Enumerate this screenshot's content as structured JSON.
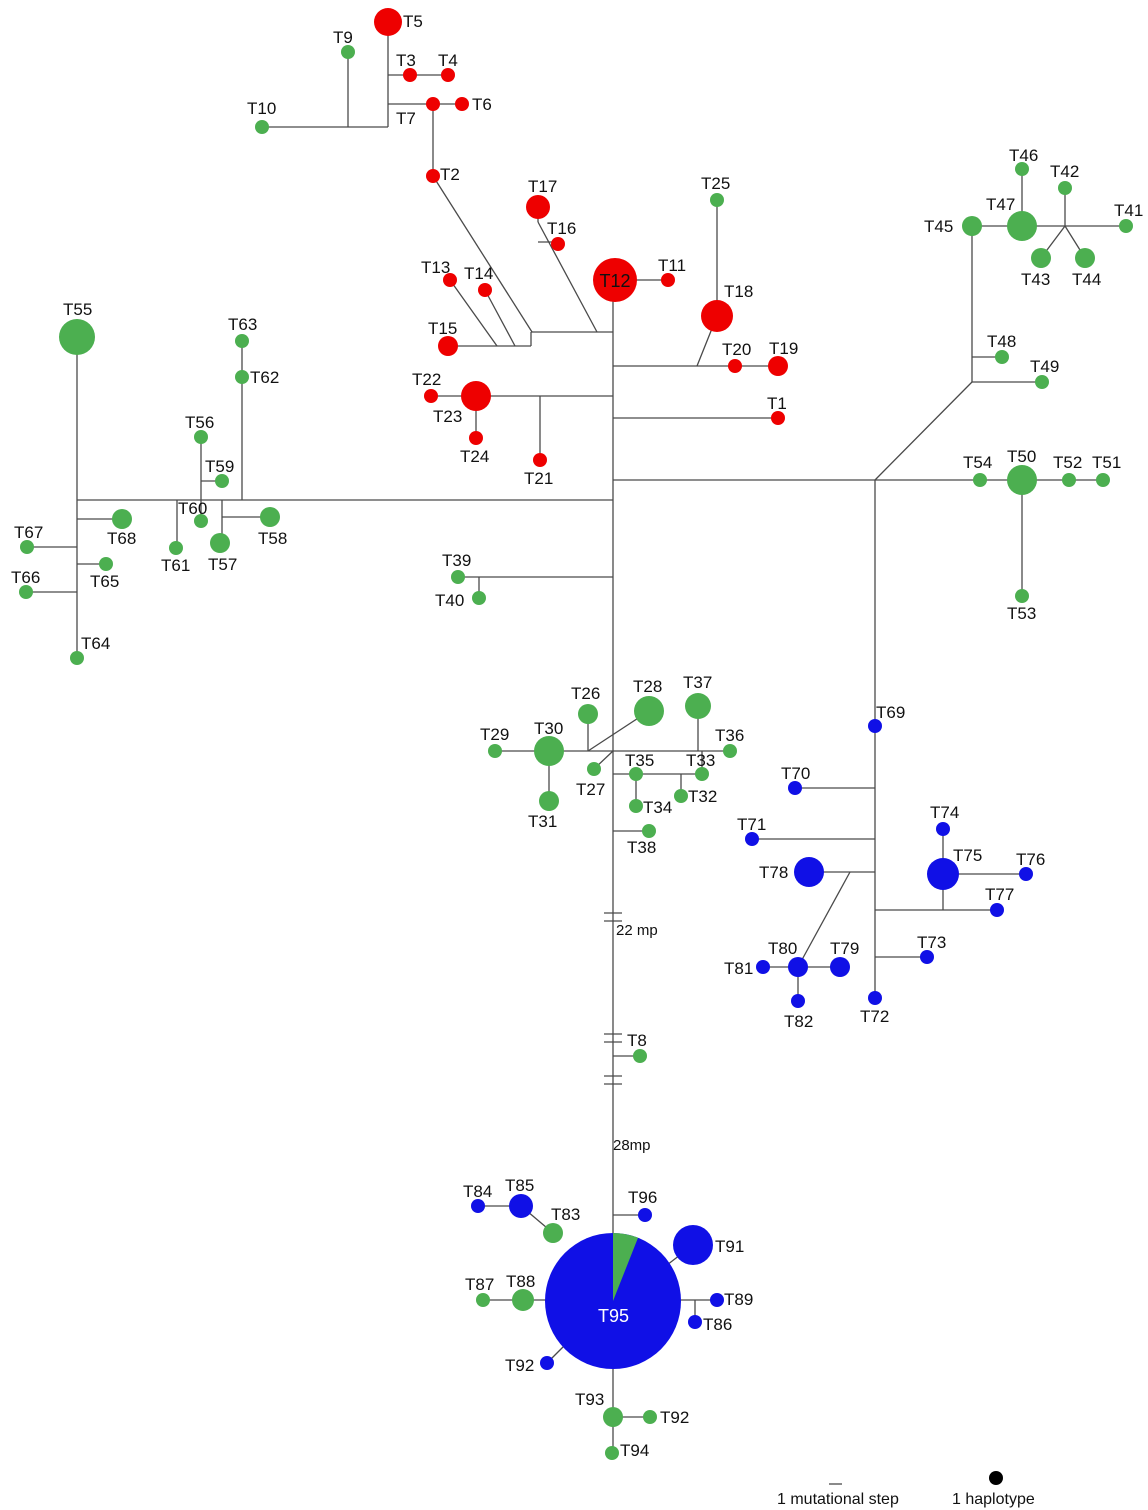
{
  "colors": {
    "red": "#ee0000",
    "green": "#4caf50",
    "blue": "#1010e6",
    "edge": "#4a4a4a",
    "legend_dot": "#000000"
  },
  "mp_labels": [
    "22 mp",
    "28mp"
  ],
  "legend": {
    "step_label": "1 mutational step",
    "haplotype_label": "1 haplotype"
  },
  "haplotypes": [
    {
      "id": "T1",
      "color": "red"
    },
    {
      "id": "T2",
      "color": "red"
    },
    {
      "id": "T3",
      "color": "red"
    },
    {
      "id": "T4",
      "color": "red"
    },
    {
      "id": "T5",
      "color": "red"
    },
    {
      "id": "T6",
      "color": "red"
    },
    {
      "id": "T7",
      "color": "red"
    },
    {
      "id": "T8",
      "color": "green"
    },
    {
      "id": "T9",
      "color": "green"
    },
    {
      "id": "T10",
      "color": "green"
    },
    {
      "id": "T11",
      "color": "red"
    },
    {
      "id": "T12",
      "color": "red"
    },
    {
      "id": "T13",
      "color": "red"
    },
    {
      "id": "T14",
      "color": "red"
    },
    {
      "id": "T15",
      "color": "red"
    },
    {
      "id": "T16",
      "color": "red"
    },
    {
      "id": "T17",
      "color": "red"
    },
    {
      "id": "T18",
      "color": "red"
    },
    {
      "id": "T19",
      "color": "red"
    },
    {
      "id": "T20",
      "color": "red"
    },
    {
      "id": "T21",
      "color": "red"
    },
    {
      "id": "T22",
      "color": "red"
    },
    {
      "id": "T23",
      "color": "red"
    },
    {
      "id": "T24",
      "color": "red"
    },
    {
      "id": "T25",
      "color": "green"
    },
    {
      "id": "T26",
      "color": "green"
    },
    {
      "id": "T27",
      "color": "green"
    },
    {
      "id": "T28",
      "color": "green"
    },
    {
      "id": "T29",
      "color": "green"
    },
    {
      "id": "T30",
      "color": "green"
    },
    {
      "id": "T31",
      "color": "green"
    },
    {
      "id": "T32",
      "color": "green"
    },
    {
      "id": "T33",
      "color": "green"
    },
    {
      "id": "T34",
      "color": "green"
    },
    {
      "id": "T35",
      "color": "green"
    },
    {
      "id": "T36",
      "color": "green"
    },
    {
      "id": "T37",
      "color": "green"
    },
    {
      "id": "T38",
      "color": "green"
    },
    {
      "id": "T39",
      "color": "green"
    },
    {
      "id": "T40",
      "color": "green"
    },
    {
      "id": "T41",
      "color": "green"
    },
    {
      "id": "T42",
      "color": "green"
    },
    {
      "id": "T43",
      "color": "green"
    },
    {
      "id": "T44",
      "color": "green"
    },
    {
      "id": "T45",
      "color": "green"
    },
    {
      "id": "T46",
      "color": "green"
    },
    {
      "id": "T47",
      "color": "green"
    },
    {
      "id": "T48",
      "color": "green"
    },
    {
      "id": "T49",
      "color": "green"
    },
    {
      "id": "T50",
      "color": "green"
    },
    {
      "id": "T51",
      "color": "green"
    },
    {
      "id": "T52",
      "color": "green"
    },
    {
      "id": "T53",
      "color": "green"
    },
    {
      "id": "T54",
      "color": "green"
    },
    {
      "id": "T55",
      "color": "green"
    },
    {
      "id": "T56",
      "color": "green"
    },
    {
      "id": "T57",
      "color": "green"
    },
    {
      "id": "T58",
      "color": "green"
    },
    {
      "id": "T59",
      "color": "green"
    },
    {
      "id": "T60",
      "color": "green"
    },
    {
      "id": "T61",
      "color": "green"
    },
    {
      "id": "T62",
      "color": "green"
    },
    {
      "id": "T63",
      "color": "green"
    },
    {
      "id": "T64",
      "color": "green"
    },
    {
      "id": "T65",
      "color": "green"
    },
    {
      "id": "T66",
      "color": "green"
    },
    {
      "id": "T67",
      "color": "green"
    },
    {
      "id": "T68",
      "color": "green"
    },
    {
      "id": "T69",
      "color": "blue"
    },
    {
      "id": "T70",
      "color": "blue"
    },
    {
      "id": "T71",
      "color": "blue"
    },
    {
      "id": "T72",
      "color": "blue"
    },
    {
      "id": "T73",
      "color": "blue"
    },
    {
      "id": "T74",
      "color": "blue"
    },
    {
      "id": "T75",
      "color": "blue"
    },
    {
      "id": "T76",
      "color": "blue"
    },
    {
      "id": "T77",
      "color": "blue"
    },
    {
      "id": "T78",
      "color": "blue"
    },
    {
      "id": "T79",
      "color": "blue"
    },
    {
      "id": "T80",
      "color": "blue"
    },
    {
      "id": "T81",
      "color": "blue"
    },
    {
      "id": "T82",
      "color": "blue"
    },
    {
      "id": "T83",
      "color": "green"
    },
    {
      "id": "T84",
      "color": "blue"
    },
    {
      "id": "T85",
      "color": "blue"
    },
    {
      "id": "T86",
      "color": "blue"
    },
    {
      "id": "T87",
      "color": "green"
    },
    {
      "id": "T88",
      "color": "green"
    },
    {
      "id": "T89",
      "color": "blue"
    },
    {
      "id": "T91",
      "color": "blue"
    },
    {
      "id": "T92",
      "color": "blue"
    },
    {
      "id": "T92",
      "color": "green"
    },
    {
      "id": "T93",
      "color": "green"
    },
    {
      "id": "T94",
      "color": "green"
    },
    {
      "id": "T95",
      "color": "blue",
      "share_green": 0.06
    },
    {
      "id": "T96",
      "color": "blue"
    }
  ]
}
